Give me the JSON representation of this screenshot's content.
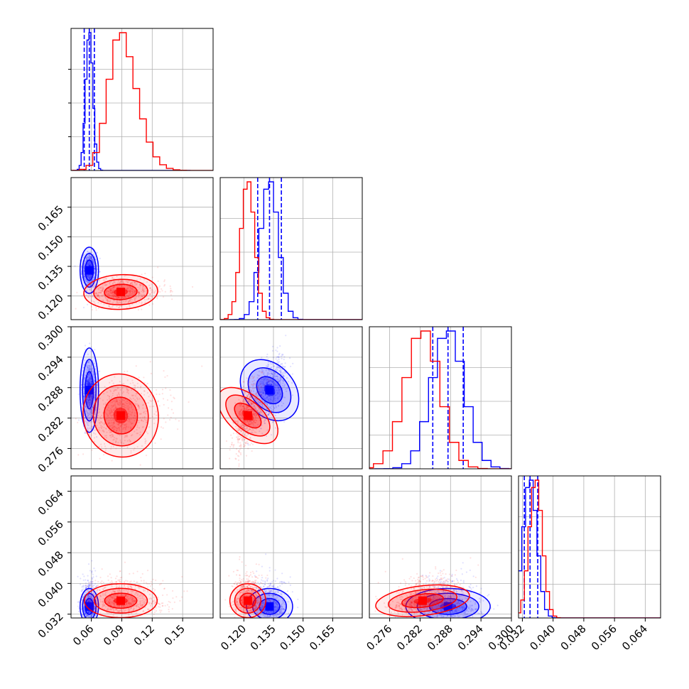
{
  "chart_data": {
    "type": "scatter",
    "subtype": "corner-plot",
    "title": "",
    "grid": true,
    "colors": {
      "blue": "#0000ff",
      "red": "#ff0000",
      "grid": "#b0b0b0"
    },
    "series": [
      {
        "color": "blue",
        "mean": [
          0.058,
          0.133,
          0.2875,
          0.034
        ],
        "sd": [
          0.0035,
          0.0045,
          0.0032,
          0.0018
        ],
        "quantiles": [
          [
            0.053,
            0.058,
            0.063
          ],
          [
            0.127,
            0.133,
            0.139
          ],
          [
            0.2845,
            0.2875,
            0.2905
          ],
          [
            0.0325,
            0.034,
            0.036
          ]
        ]
      },
      {
        "color": "red",
        "mean": [
          0.089,
          0.122,
          0.2825,
          0.0355
        ],
        "sd": [
          0.012,
          0.0035,
          0.0034,
          0.0017
        ]
      }
    ],
    "axes": [
      {
        "range": [
          0.04,
          0.18
        ],
        "ticks": [
          0.06,
          0.09,
          0.12,
          0.15
        ],
        "tick_labels": [
          "0.06",
          "0.09",
          "0.12",
          "0.15"
        ]
      },
      {
        "range": [
          0.108,
          0.18
        ],
        "ticks": [
          0.12,
          0.135,
          0.15,
          0.165
        ],
        "tick_labels": [
          "0.120",
          "0.135",
          "0.150",
          "0.165"
        ]
      },
      {
        "range": [
          0.272,
          0.3
        ],
        "ticks": [
          0.276,
          0.282,
          0.288,
          0.294,
          0.3
        ],
        "tick_labels": [
          "0.276",
          "0.282",
          "0.288",
          "0.294",
          "0.300"
        ]
      },
      {
        "range": [
          0.031,
          0.068
        ],
        "ticks": [
          0.032,
          0.04,
          0.048,
          0.056,
          0.064
        ],
        "tick_labels": [
          "0.032",
          "0.040",
          "0.048",
          "0.056",
          "0.064"
        ]
      }
    ],
    "contour_levels": [
      0.39,
      0.86,
      0.99
    ]
  }
}
